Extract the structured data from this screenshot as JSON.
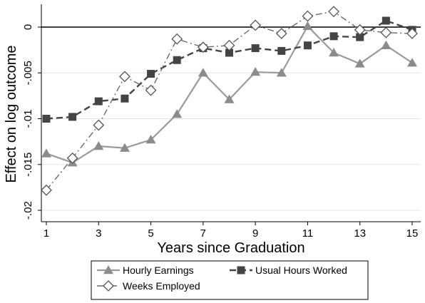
{
  "chart_data": {
    "type": "line",
    "xlabel": "Years since Graduation",
    "ylabel": "Effect on log outcome",
    "x": [
      1,
      2,
      3,
      4,
      5,
      6,
      7,
      8,
      9,
      10,
      11,
      12,
      13,
      14,
      15
    ],
    "xticks": [
      1,
      3,
      5,
      7,
      9,
      11,
      13,
      15
    ],
    "xlim": [
      1,
      15
    ],
    "ylim": [
      -0.02,
      0.0
    ],
    "yticks": [
      0,
      -0.005,
      -0.01,
      -0.015,
      -0.02
    ],
    "ytick_labels": [
      "0",
      "-.005",
      "-.01",
      "-.015",
      "-.02"
    ],
    "grid": true,
    "reference_line_y": 0,
    "legend_position": "bottom",
    "series": [
      {
        "name": "Hourly Earnings",
        "marker": "triangle",
        "line_style": "solid",
        "line_color": "#9a9a9a",
        "marker_color": "#8c8c8c",
        "values": [
          -0.0138,
          -0.0148,
          -0.013,
          -0.0132,
          -0.0123,
          -0.0095,
          -0.005,
          -0.0079,
          -0.0049,
          -0.005,
          0.0001,
          -0.0028,
          -0.004,
          -0.002,
          -0.0039
        ]
      },
      {
        "name": "Usual Hours Worked",
        "marker": "square",
        "line_style": "dash",
        "line_color": "#444444",
        "marker_color": "#444444",
        "values": [
          -0.01,
          -0.0098,
          -0.0081,
          -0.0078,
          -0.0051,
          -0.0036,
          -0.0023,
          -0.0028,
          -0.0023,
          -0.0026,
          -0.002,
          -0.001,
          -0.0011,
          0.0007,
          -0.0003
        ]
      },
      {
        "name": "Weeks Employed",
        "marker": "diamond",
        "line_style": "dashdot",
        "line_color": "#6a6a6a",
        "marker_color": "#555555",
        "values": [
          -0.0178,
          -0.0143,
          -0.0107,
          -0.0054,
          -0.0069,
          -0.0013,
          -0.0022,
          -0.002,
          0.0002,
          -0.0007,
          0.0012,
          0.0017,
          -0.0003,
          -0.0006,
          -0.0007
        ]
      }
    ]
  }
}
